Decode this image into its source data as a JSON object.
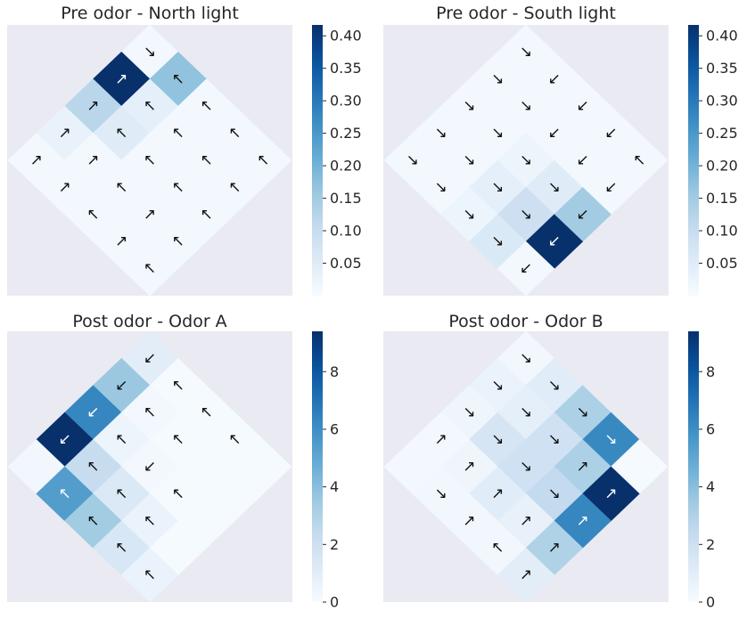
{
  "chart_data": [
    {
      "type": "heatmap",
      "title": "Pre odor - North light",
      "colormap": "Blues",
      "colorbar": {
        "min": 0,
        "max": 0.4167,
        "ticks": [
          0.05,
          0.1,
          0.15,
          0.2,
          0.25,
          0.3,
          0.35,
          0.4
        ],
        "tick_labels": [
          "0.05",
          "0.10",
          "0.15",
          "0.20",
          "0.25",
          "0.30",
          "0.35",
          "0.40"
        ]
      },
      "cells": [
        {
          "r": 0,
          "c": 0,
          "v": 0.01,
          "a": "↘"
        },
        {
          "r": 1,
          "c": 0,
          "v": 0.42,
          "a": "↗"
        },
        {
          "r": 0,
          "c": 1,
          "v": 0.17,
          "a": "↖"
        },
        {
          "r": 2,
          "c": 0,
          "v": 0.12,
          "a": "↗"
        },
        {
          "r": 1,
          "c": 1,
          "v": 0.04,
          "a": "↖"
        },
        {
          "r": 0,
          "c": 2,
          "v": 0.01,
          "a": "↖"
        },
        {
          "r": 3,
          "c": 0,
          "v": 0.03,
          "a": "↗"
        },
        {
          "r": 2,
          "c": 1,
          "v": 0.05,
          "a": "↖"
        },
        {
          "r": 1,
          "c": 2,
          "v": 0.01,
          "a": "↖"
        },
        {
          "r": 0,
          "c": 3,
          "v": 0.01,
          "a": "↖"
        },
        {
          "r": 4,
          "c": 0,
          "v": 0.01,
          "a": "↗"
        },
        {
          "r": 3,
          "c": 1,
          "v": 0.01,
          "a": "↗"
        },
        {
          "r": 2,
          "c": 2,
          "v": 0.01,
          "a": "↖"
        },
        {
          "r": 1,
          "c": 3,
          "v": 0.01,
          "a": "↖"
        },
        {
          "r": 0,
          "c": 4,
          "v": 0.01,
          "a": "↖"
        },
        {
          "r": 4,
          "c": 1,
          "v": 0.01,
          "a": "↗"
        },
        {
          "r": 3,
          "c": 2,
          "v": 0.01,
          "a": "↖"
        },
        {
          "r": 2,
          "c": 3,
          "v": 0.01,
          "a": "↖"
        },
        {
          "r": 1,
          "c": 4,
          "v": 0.01,
          "a": "↖"
        },
        {
          "r": 4,
          "c": 2,
          "v": 0.01,
          "a": "↖"
        },
        {
          "r": 3,
          "c": 3,
          "v": 0.01,
          "a": "↗"
        },
        {
          "r": 2,
          "c": 4,
          "v": 0.01,
          "a": "↖"
        },
        {
          "r": 4,
          "c": 3,
          "v": 0.01,
          "a": "↗"
        },
        {
          "r": 3,
          "c": 4,
          "v": 0.01,
          "a": "↖"
        },
        {
          "r": 4,
          "c": 4,
          "v": 0.01,
          "a": "↖"
        }
      ]
    },
    {
      "type": "heatmap",
      "title": "Pre odor - South light",
      "colormap": "Blues",
      "colorbar": {
        "min": 0,
        "max": 0.4167,
        "ticks": [
          0.05,
          0.1,
          0.15,
          0.2,
          0.25,
          0.3,
          0.35,
          0.4
        ],
        "tick_labels": [
          "0.05",
          "0.10",
          "0.15",
          "0.20",
          "0.25",
          "0.30",
          "0.35",
          "0.40"
        ]
      },
      "cells": [
        {
          "r": 0,
          "c": 0,
          "v": 0.01,
          "a": "↘"
        },
        {
          "r": 1,
          "c": 0,
          "v": 0.01,
          "a": "↘"
        },
        {
          "r": 0,
          "c": 1,
          "v": 0.01,
          "a": "↙"
        },
        {
          "r": 2,
          "c": 0,
          "v": 0.01,
          "a": "↘"
        },
        {
          "r": 1,
          "c": 1,
          "v": 0.01,
          "a": "↘"
        },
        {
          "r": 0,
          "c": 2,
          "v": 0.01,
          "a": "↙"
        },
        {
          "r": 3,
          "c": 0,
          "v": 0.01,
          "a": "↘"
        },
        {
          "r": 2,
          "c": 1,
          "v": 0.01,
          "a": "↘"
        },
        {
          "r": 1,
          "c": 2,
          "v": 0.01,
          "a": "↙"
        },
        {
          "r": 0,
          "c": 3,
          "v": 0.01,
          "a": "↙"
        },
        {
          "r": 4,
          "c": 0,
          "v": 0.01,
          "a": "↘"
        },
        {
          "r": 3,
          "c": 1,
          "v": 0.01,
          "a": "↘"
        },
        {
          "r": 2,
          "c": 2,
          "v": 0.02,
          "a": "↘"
        },
        {
          "r": 1,
          "c": 3,
          "v": 0.01,
          "a": "↙"
        },
        {
          "r": 0,
          "c": 4,
          "v": 0.01,
          "a": "↖"
        },
        {
          "r": 4,
          "c": 1,
          "v": 0.01,
          "a": "↘"
        },
        {
          "r": 3,
          "c": 2,
          "v": 0.04,
          "a": "↘"
        },
        {
          "r": 2,
          "c": 3,
          "v": 0.05,
          "a": "↘"
        },
        {
          "r": 1,
          "c": 4,
          "v": 0.01,
          "a": "↙"
        },
        {
          "r": 4,
          "c": 2,
          "v": 0.02,
          "a": "↘"
        },
        {
          "r": 3,
          "c": 3,
          "v": 0.09,
          "a": "↘"
        },
        {
          "r": 2,
          "c": 4,
          "v": 0.15,
          "a": "↙"
        },
        {
          "r": 4,
          "c": 3,
          "v": 0.06,
          "a": "↘"
        },
        {
          "r": 3,
          "c": 4,
          "v": 0.42,
          "a": "↙"
        },
        {
          "r": 4,
          "c": 4,
          "v": 0.01,
          "a": "↙"
        }
      ]
    },
    {
      "type": "heatmap",
      "title": "Post odor - Odor A",
      "colormap": "Blues",
      "colorbar": {
        "min": 0,
        "max": 9.4,
        "ticks": [
          0,
          2,
          4,
          6,
          8
        ],
        "tick_labels": [
          "0",
          "2",
          "4",
          "6",
          "8"
        ]
      },
      "cells": [
        {
          "r": 0,
          "c": 0,
          "v": 1.0,
          "a": "↙"
        },
        {
          "r": 1,
          "c": 0,
          "v": 3.6,
          "a": "↙"
        },
        {
          "r": 0,
          "c": 1,
          "v": 0.1,
          "a": "↖"
        },
        {
          "r": 2,
          "c": 0,
          "v": 6.3,
          "a": "↙"
        },
        {
          "r": 1,
          "c": 1,
          "v": 0.2,
          "a": "↖"
        },
        {
          "r": 0,
          "c": 2,
          "v": 0.1,
          "a": "↖"
        },
        {
          "r": 3,
          "c": 0,
          "v": 9.4,
          "a": "↙"
        },
        {
          "r": 2,
          "c": 1,
          "v": 0.5,
          "a": "↖"
        },
        {
          "r": 1,
          "c": 2,
          "v": 0.1,
          "a": "↖"
        },
        {
          "r": 0,
          "c": 3,
          "v": 0.1,
          "a": "↖"
        },
        {
          "r": 4,
          "c": 0,
          "v": 0.3,
          "a": ""
        },
        {
          "r": 3,
          "c": 1,
          "v": 2.3,
          "a": "↖"
        },
        {
          "r": 2,
          "c": 2,
          "v": 0.2,
          "a": "↙"
        },
        {
          "r": 1,
          "c": 3,
          "v": 0.1,
          "a": ""
        },
        {
          "r": 0,
          "c": 4,
          "v": 0.1,
          "a": ""
        },
        {
          "r": 4,
          "c": 1,
          "v": 5.4,
          "a": "↖"
        },
        {
          "r": 3,
          "c": 2,
          "v": 1.3,
          "a": "↖"
        },
        {
          "r": 2,
          "c": 3,
          "v": 0.1,
          "a": "↖"
        },
        {
          "r": 1,
          "c": 4,
          "v": 0.1,
          "a": ""
        },
        {
          "r": 4,
          "c": 2,
          "v": 3.4,
          "a": "↖"
        },
        {
          "r": 3,
          "c": 3,
          "v": 0.6,
          "a": "↖"
        },
        {
          "r": 2,
          "c": 4,
          "v": 0.1,
          "a": ""
        },
        {
          "r": 4,
          "c": 3,
          "v": 1.5,
          "a": "↖"
        },
        {
          "r": 3,
          "c": 4,
          "v": 0.1,
          "a": ""
        },
        {
          "r": 4,
          "c": 4,
          "v": 0.6,
          "a": "↖"
        }
      ]
    },
    {
      "type": "heatmap",
      "title": "Post odor - Odor B",
      "colormap": "Blues",
      "colorbar": {
        "min": 0,
        "max": 9.4,
        "ticks": [
          0,
          2,
          4,
          6,
          8
        ],
        "tick_labels": [
          "0",
          "2",
          "4",
          "6",
          "8"
        ]
      },
      "cells": [
        {
          "r": 0,
          "c": 0,
          "v": 0.3,
          "a": "↘"
        },
        {
          "r": 1,
          "c": 0,
          "v": 0.6,
          "a": "↘"
        },
        {
          "r": 0,
          "c": 1,
          "v": 1.1,
          "a": "↘"
        },
        {
          "r": 2,
          "c": 0,
          "v": 0.4,
          "a": "↘"
        },
        {
          "r": 1,
          "c": 1,
          "v": 0.9,
          "a": "↘"
        },
        {
          "r": 0,
          "c": 2,
          "v": 3.1,
          "a": "↘"
        },
        {
          "r": 3,
          "c": 0,
          "v": 0.2,
          "a": "↗"
        },
        {
          "r": 2,
          "c": 1,
          "v": 1.6,
          "a": "↘"
        },
        {
          "r": 1,
          "c": 2,
          "v": 1.9,
          "a": "↘"
        },
        {
          "r": 0,
          "c": 3,
          "v": 6.2,
          "a": "↘"
        },
        {
          "r": 4,
          "c": 0,
          "v": 0.2,
          "a": ""
        },
        {
          "r": 3,
          "c": 1,
          "v": 0.4,
          "a": "↗"
        },
        {
          "r": 2,
          "c": 2,
          "v": 1.9,
          "a": "↘"
        },
        {
          "r": 1,
          "c": 3,
          "v": 3.1,
          "a": "↗"
        },
        {
          "r": 0,
          "c": 4,
          "v": 0.1,
          "a": ""
        },
        {
          "r": 4,
          "c": 1,
          "v": 0.3,
          "a": "↘"
        },
        {
          "r": 3,
          "c": 2,
          "v": 1.1,
          "a": "↗"
        },
        {
          "r": 2,
          "c": 3,
          "v": 2.4,
          "a": "↘"
        },
        {
          "r": 1,
          "c": 4,
          "v": 9.4,
          "a": "↗"
        },
        {
          "r": 4,
          "c": 2,
          "v": 0.3,
          "a": "↗"
        },
        {
          "r": 3,
          "c": 3,
          "v": 0.7,
          "a": "↗"
        },
        {
          "r": 2,
          "c": 4,
          "v": 6.3,
          "a": "↗"
        },
        {
          "r": 4,
          "c": 3,
          "v": 0.3,
          "a": "↖"
        },
        {
          "r": 3,
          "c": 4,
          "v": 3.0,
          "a": "↗"
        },
        {
          "r": 4,
          "c": 4,
          "v": 1.0,
          "a": "↗"
        }
      ]
    }
  ],
  "panels": {
    "p0": {
      "title": "Pre odor - North light"
    },
    "p1": {
      "title": "Pre odor - South light"
    },
    "p2": {
      "title": "Post odor - Odor A"
    },
    "p3": {
      "title": "Post odor - Odor B"
    }
  },
  "colors": {
    "axes_bg": "#eaeaf2",
    "text": "#262626"
  }
}
